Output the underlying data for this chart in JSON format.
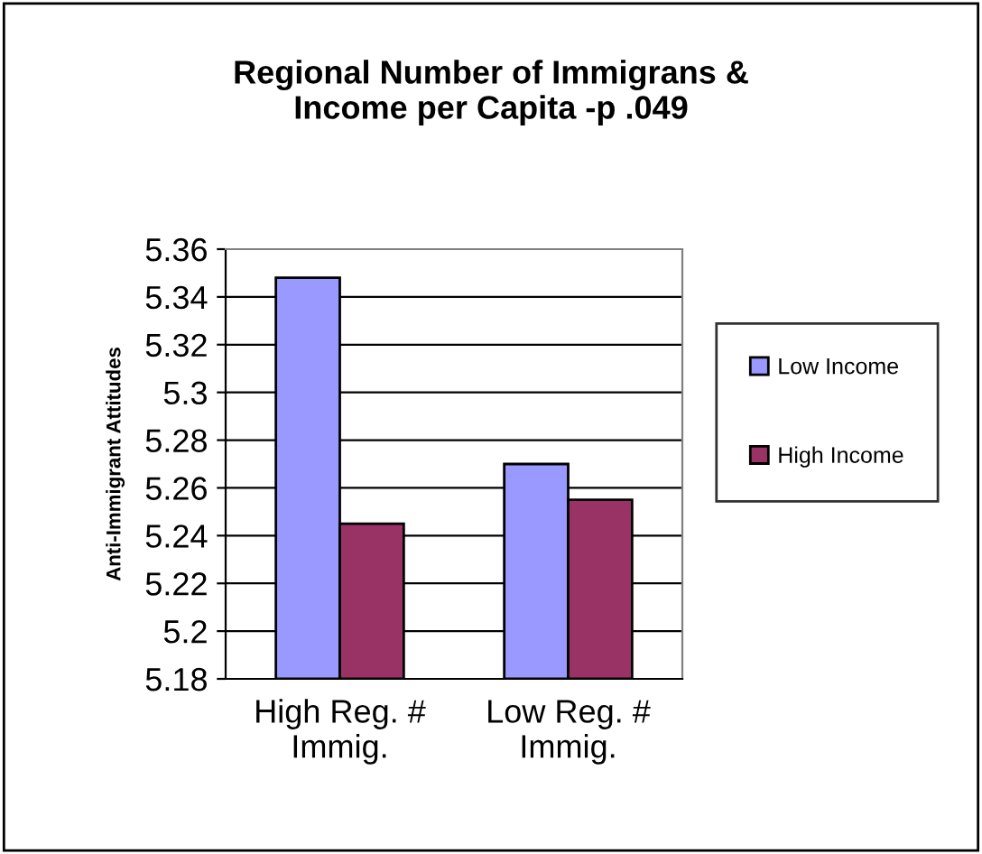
{
  "chart_data": {
    "type": "bar",
    "title": "Regional Number of Immigrans &\nIncome per Capita -p .049",
    "ylabel": "Anti-Immigrant Attitudes",
    "categories": [
      "High Reg. #\nImmig.",
      "Low Reg. #\nImmig."
    ],
    "series": [
      {
        "name": "Low Income",
        "color": "#9999ff",
        "values": [
          5.348,
          5.27
        ]
      },
      {
        "name": "High Income",
        "color": "#993366",
        "values": [
          5.245,
          5.255
        ]
      }
    ],
    "ylim": [
      5.18,
      5.36
    ],
    "yticks": [
      5.18,
      5.2,
      5.22,
      5.24,
      5.26,
      5.28,
      5.3,
      5.32,
      5.34,
      5.36
    ],
    "grid": "y",
    "legend": "right"
  }
}
